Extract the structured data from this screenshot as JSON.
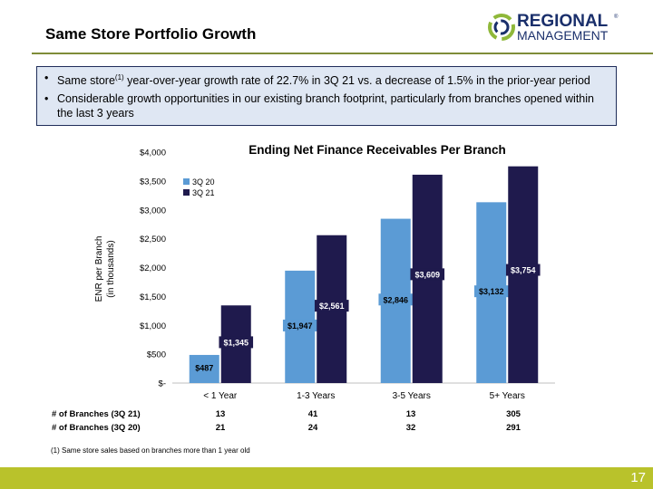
{
  "header": {
    "title": "Same Store Portfolio Growth",
    "logo_text_1": "REGIONAL",
    "logo_text_2": "MANAGEMENT",
    "logo_mark": "®"
  },
  "bullets": {
    "items": [
      {
        "pre": "Same store",
        "sup": "(1)",
        "post": " year-over-year growth rate of 22.7% in 3Q 21 vs. a decrease of 1.5% in the prior-year period"
      },
      {
        "pre": "Considerable growth opportunities in our existing branch footprint, particularly from branches opened within the last 3 years",
        "sup": "",
        "post": ""
      }
    ]
  },
  "chart_data": {
    "type": "bar",
    "title": "Ending Net Finance Receivables Per Branch",
    "ylabel": "ENR per Branch\n(in thousands)",
    "xlabel": "",
    "categories": [
      "< 1 Year",
      "1-3 Years",
      "3-5 Years",
      "5+ Years"
    ],
    "series": [
      {
        "name": "3Q 20",
        "values": [
          487,
          1947,
          2846,
          3132
        ],
        "labels": [
          "$487",
          "$1,947",
          "$2,846",
          "$3,132"
        ],
        "color": "#5b9bd5"
      },
      {
        "name": "3Q 21",
        "values": [
          1345,
          2561,
          3609,
          3754
        ],
        "labels": [
          "$1,345",
          "$2,561",
          "$3,609",
          "$3,754"
        ],
        "color": "#1f1a4d"
      }
    ],
    "ylim": [
      0,
      4000
    ],
    "yticks": [
      0,
      500,
      1000,
      1500,
      2000,
      2500,
      3000,
      3500,
      4000
    ],
    "ytick_labels": [
      "$-",
      "$500",
      "$1,000",
      "$1,500",
      "$2,000",
      "$2,500",
      "$3,000",
      "$3,500",
      "$4,000"
    ],
    "legend_position": "top-left",
    "grid": false
  },
  "table": {
    "rows": [
      {
        "label": "# of Branches (3Q 21)",
        "values": [
          "13",
          "41",
          "13",
          "305"
        ]
      },
      {
        "label": "# of Branches (3Q 20)",
        "values": [
          "21",
          "24",
          "32",
          "291"
        ]
      }
    ]
  },
  "footnote": "(1) Same store sales based on branches more than 1 year old",
  "footer": {
    "page_number": "17"
  },
  "colors": {
    "accent_green": "#b9c22b",
    "navy": "#1f1a4d",
    "blue": "#5b9bd5"
  }
}
